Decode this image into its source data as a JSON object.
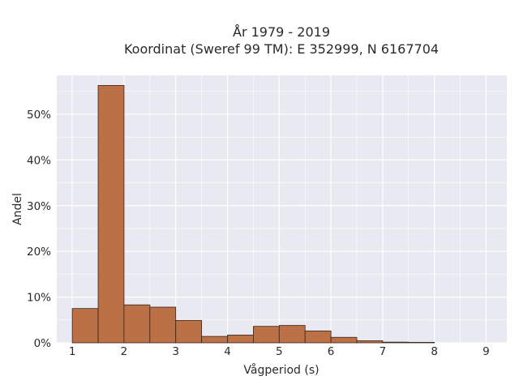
{
  "chart_data": {
    "type": "bar",
    "title_lines": [
      "År 1979 - 2019",
      "Koordinat (Sweref 99 TM): E 352999, N 6167704"
    ],
    "xlabel": "Vågperiod (s)",
    "ylabel": "Andel",
    "xlim": [
      0.7,
      9.4
    ],
    "ylim": [
      0,
      58.5
    ],
    "x_ticks": [
      1,
      2,
      3,
      4,
      5,
      6,
      7,
      8,
      9
    ],
    "y_ticks": [
      0,
      10,
      20,
      30,
      40,
      50
    ],
    "y_tick_suffix": "%",
    "bin_edges": [
      1.0,
      1.5,
      2.0,
      2.5,
      3.0,
      3.5,
      4.0,
      4.5,
      5.0,
      5.5,
      6.0,
      6.5,
      7.0,
      7.5,
      8.0
    ],
    "values": [
      7.5,
      56.3,
      8.3,
      7.8,
      4.9,
      1.4,
      1.7,
      3.6,
      3.8,
      2.6,
      1.2,
      0.45,
      0.15,
      0.1
    ],
    "grid": true,
    "colors": {
      "bar_fill": "#bc7046",
      "bar_edge": "#3a2418",
      "plot_bg": "#e9e9f1",
      "grid": "#ffffff"
    }
  }
}
